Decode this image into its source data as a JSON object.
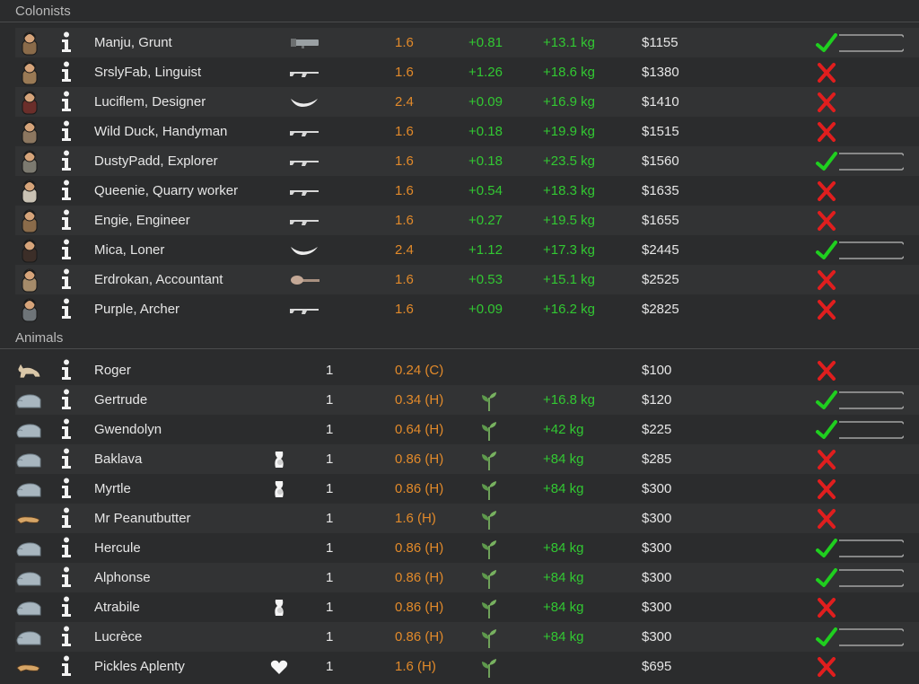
{
  "sections": {
    "colonists_title": "Colonists",
    "animals_title": "Animals"
  },
  "colonists": [
    {
      "name": "Manju, Grunt",
      "weapon": "launcher-icon",
      "mass": "1.6",
      "v1": "+0.81",
      "v2": "+13.1 kg",
      "price": "$1155",
      "status": "check"
    },
    {
      "name": "SrslyFab, Linguist",
      "weapon": "rifle-icon",
      "mass": "1.6",
      "v1": "+1.26",
      "v2": "+18.6 kg",
      "price": "$1380",
      "status": "cross"
    },
    {
      "name": "Luciflem, Designer",
      "weapon": "horn-icon",
      "mass": "2.4",
      "v1": "+0.09",
      "v2": "+16.9 kg",
      "price": "$1410",
      "status": "cross"
    },
    {
      "name": "Wild Duck, Handyman",
      "weapon": "rifle-icon",
      "mass": "1.6",
      "v1": "+0.18",
      "v2": "+19.9 kg",
      "price": "$1515",
      "status": "cross"
    },
    {
      "name": "DustyPadd, Explorer",
      "weapon": "rifle-icon",
      "mass": "1.6",
      "v1": "+0.18",
      "v2": "+23.5 kg",
      "price": "$1560",
      "status": "check"
    },
    {
      "name": "Queenie, Quarry worker",
      "weapon": "rifle-icon",
      "mass": "1.6",
      "v1": "+0.54",
      "v2": "+18.3 kg",
      "price": "$1635",
      "status": "cross"
    },
    {
      "name": "Engie, Engineer",
      "weapon": "rifle-icon",
      "mass": "1.6",
      "v1": "+0.27",
      "v2": "+19.5 kg",
      "price": "$1655",
      "status": "cross"
    },
    {
      "name": "Mica, Loner",
      "weapon": "horn-icon",
      "mass": "2.4",
      "v1": "+1.12",
      "v2": "+17.3 kg",
      "price": "$2445",
      "status": "check"
    },
    {
      "name": "Erdrokan, Accountant",
      "weapon": "club-icon",
      "mass": "1.6",
      "v1": "+0.53",
      "v2": "+15.1 kg",
      "price": "$2525",
      "status": "cross"
    },
    {
      "name": "Purple, Archer",
      "weapon": "rifle-icon",
      "mass": "1.6",
      "v1": "+0.09",
      "v2": "+16.2 kg",
      "price": "$2825",
      "status": "cross"
    }
  ],
  "animals": [
    {
      "name": "Roger",
      "species": "cat",
      "extra": "",
      "count": "1",
      "mass": "0.24 (C)",
      "plant": false,
      "meat": "",
      "price": "$100",
      "status": "cross"
    },
    {
      "name": "Gertrude",
      "species": "bear",
      "extra": "",
      "count": "1",
      "mass": "0.34 (H)",
      "plant": true,
      "meat": "+16.8 kg",
      "price": "$120",
      "status": "check"
    },
    {
      "name": "Gwendolyn",
      "species": "bear",
      "extra": "",
      "count": "1",
      "mass": "0.64 (H)",
      "plant": true,
      "meat": "+42 kg",
      "price": "$225",
      "status": "check"
    },
    {
      "name": "Baklava",
      "species": "bear",
      "extra": "pregnant",
      "count": "1",
      "mass": "0.86 (H)",
      "plant": true,
      "meat": "+84 kg",
      "price": "$285",
      "status": "cross"
    },
    {
      "name": "Myrtle",
      "species": "bear",
      "extra": "pregnant",
      "count": "1",
      "mass": "0.86 (H)",
      "plant": true,
      "meat": "+84 kg",
      "price": "$300",
      "status": "cross"
    },
    {
      "name": "Mr Peanutbutter",
      "species": "dog",
      "extra": "",
      "count": "1",
      "mass": "1.6 (H)",
      "plant": true,
      "meat": "",
      "price": "$300",
      "status": "cross"
    },
    {
      "name": "Hercule",
      "species": "bear",
      "extra": "",
      "count": "1",
      "mass": "0.86 (H)",
      "plant": true,
      "meat": "+84 kg",
      "price": "$300",
      "status": "check"
    },
    {
      "name": "Alphonse",
      "species": "bear",
      "extra": "",
      "count": "1",
      "mass": "0.86 (H)",
      "plant": true,
      "meat": "+84 kg",
      "price": "$300",
      "status": "check"
    },
    {
      "name": "Atrabile",
      "species": "bear",
      "extra": "pregnant",
      "count": "1",
      "mass": "0.86 (H)",
      "plant": true,
      "meat": "+84 kg",
      "price": "$300",
      "status": "cross"
    },
    {
      "name": "Lucrèce",
      "species": "bear",
      "extra": "",
      "count": "1",
      "mass": "0.86 (H)",
      "plant": true,
      "meat": "+84 kg",
      "price": "$300",
      "status": "check"
    },
    {
      "name": "Pickles Aplenty",
      "species": "dog",
      "extra": "heart",
      "count": "1",
      "mass": "1.6 (H)",
      "plant": true,
      "meat": "",
      "price": "$695",
      "status": "cross"
    }
  ],
  "colors": {
    "mass": "#e28a2a",
    "positive": "#32c832",
    "check": "#1fcf1f",
    "cross": "#e01e1e"
  }
}
